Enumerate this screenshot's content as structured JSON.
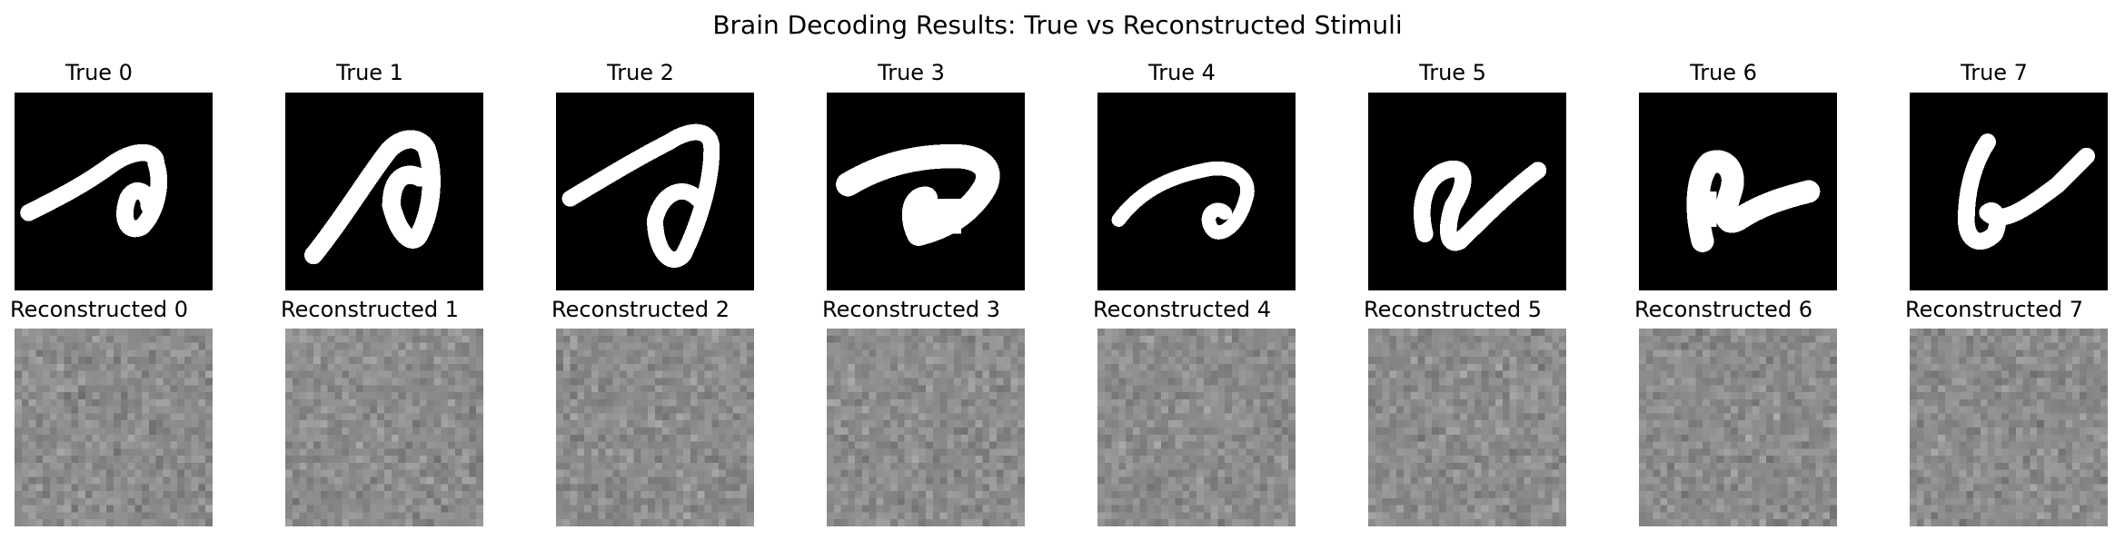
{
  "figure": {
    "title": "Brain Decoding Results: True vs Reconstructed Stimuli"
  },
  "rows": {
    "true": {
      "labels": [
        "True 0",
        "True 1",
        "True 2",
        "True 3",
        "True 4",
        "True 5",
        "True 6",
        "True 7"
      ]
    },
    "reconstructed": {
      "labels": [
        "Reconstructed 0",
        "Reconstructed 1",
        "Reconstructed 2",
        "Reconstructed 3",
        "Reconstructed 4",
        "Reconstructed 5",
        "Reconstructed 6",
        "Reconstructed 7"
      ]
    }
  },
  "colors": {
    "background": "#ffffff",
    "true_panel_bg": "#000000",
    "stroke": "#ffffff",
    "noise_base": "#8c8c8c"
  }
}
